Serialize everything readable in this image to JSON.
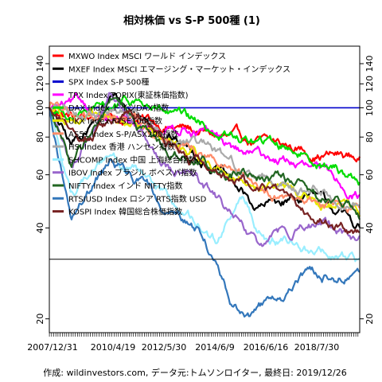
{
  "chart_data": {
    "type": "line",
    "title": "相対株価 vs S-P 500種 (1)",
    "footer": "作成: wildinvestors.com, データ元:トムソンロイター, 最終日: 2019/12/26",
    "y_scale": "log",
    "ylim": [
      18,
      160
    ],
    "xlim": [
      "2007-12-31",
      "2019-12-26"
    ],
    "y_ticks": [
      20,
      40,
      60,
      80,
      100,
      120,
      140
    ],
    "x_tick_labels": [
      "2007/12/31",
      "2010/4/19",
      "2012/5/30",
      "2014/6/9",
      "2016/6/16",
      "2018/7/30"
    ],
    "reference_lines": [
      100,
      31.5
    ],
    "grid": false,
    "legend_position": "top-left",
    "series": [
      {
        "name": "MXWO Index MSCI ワールド インデックス",
        "color": "#ff0000",
        "x": [
          "2007-12-31",
          "2009-03-01",
          "2011-01-01",
          "2013-01-01",
          "2015-01-01",
          "2017-01-01",
          "2019-12-26"
        ],
        "values": [
          100,
          92,
          94,
          86,
          78,
          74,
          68
        ]
      },
      {
        "name": "MXEF Index MSCI エマージング・マーケット・インデックス",
        "color": "#000000",
        "x": [
          "2007-12-31",
          "2008-11-01",
          "2010-06-01",
          "2012-06-01",
          "2014-06-01",
          "2016-01-01",
          "2018-01-01",
          "2019-12-26"
        ],
        "values": [
          100,
          74,
          108,
          84,
          64,
          46,
          52,
          40
        ]
      },
      {
        "name": "SPX Index S-P 500種",
        "color": "#0000cc",
        "x": [
          "2007-12-31",
          "2019-12-26"
        ],
        "values": [
          100,
          100
        ]
      },
      {
        "name": "TPX Index TOPIX(東証株価指数)",
        "color": "#ff00ff",
        "x": [
          "2007-12-31",
          "2009-06-01",
          "2011-06-01",
          "2013-06-01",
          "2015-06-01",
          "2017-06-01",
          "2019-12-26"
        ],
        "values": [
          100,
          100,
          82,
          88,
          70,
          66,
          52
        ]
      },
      {
        "name": "DAX Index ドイツDAX指数",
        "color": "#00dd00",
        "x": [
          "2007-12-31",
          "2009-06-01",
          "2011-06-01",
          "2013-06-01",
          "2015-06-01",
          "2017-06-01",
          "2019-12-26"
        ],
        "values": [
          100,
          94,
          104,
          88,
          78,
          74,
          58
        ]
      },
      {
        "name": "UKX Index FTSE100指数",
        "color": "#e8e800",
        "x": [
          "2007-12-31",
          "2009-06-01",
          "2011-06-01",
          "2013-06-01",
          "2015-06-01",
          "2017-06-01",
          "2019-12-26"
        ],
        "values": [
          100,
          92,
          88,
          70,
          58,
          52,
          44
        ]
      },
      {
        "name": "AS51 Index S-P/ASX200指数",
        "color": "#ff8c69",
        "x": [
          "2007-12-31",
          "2009-06-01",
          "2011-06-01",
          "2013-06-01",
          "2015-06-01",
          "2017-06-01",
          "2019-12-26"
        ],
        "values": [
          100,
          96,
          92,
          74,
          58,
          50,
          46
        ]
      },
      {
        "name": "HSI Index 香港 ハンセン指数",
        "color": "#aaaaaa",
        "x": [
          "2007-12-31",
          "2009-06-01",
          "2011-06-01",
          "2013-06-01",
          "2015-06-01",
          "2017-06-01",
          "2019-12-26"
        ],
        "values": [
          100,
          98,
          92,
          76,
          62,
          56,
          48
        ]
      },
      {
        "name": "SHCOMP Index 中国 上海総合指数",
        "color": "#99eeff",
        "x": [
          "2007-12-31",
          "2008-11-01",
          "2010-06-01",
          "2012-06-01",
          "2014-06-01",
          "2015-06-01",
          "2016-06-01",
          "2018-01-01",
          "2019-12-26"
        ],
        "values": [
          100,
          52,
          72,
          50,
          36,
          50,
          36,
          34,
          30
        ]
      },
      {
        "name": "IBOV Index ブラジル ボベスパ指数",
        "color": "#9966cc",
        "x": [
          "2007-12-31",
          "2008-11-01",
          "2010-06-01",
          "2012-06-01",
          "2014-06-01",
          "2016-01-01",
          "2018-01-01",
          "2019-12-26"
        ],
        "values": [
          100,
          66,
          110,
          68,
          50,
          34,
          42,
          36
        ]
      },
      {
        "name": "NIFTY Index インド NIFTY指数",
        "color": "#226622",
        "x": [
          "2007-12-31",
          "2008-11-01",
          "2010-06-01",
          "2012-06-01",
          "2014-06-01",
          "2016-06-01",
          "2018-06-01",
          "2019-12-26"
        ],
        "values": [
          100,
          64,
          104,
          72,
          64,
          58,
          52,
          44
        ]
      },
      {
        "name": "RTSIUSD Index ロシア RTS指数 USD",
        "color": "#3377bb",
        "x": [
          "2007-12-31",
          "2008-11-01",
          "2010-06-01",
          "2012-06-01",
          "2014-01-01",
          "2015-01-01",
          "2016-01-01",
          "2018-01-01",
          "2019-12-26"
        ],
        "values": [
          100,
          42,
          68,
          48,
          38,
          22,
          21,
          27,
          28
        ]
      },
      {
        "name": "KOSPI Index 韓国総合株価指数",
        "color": "#772222",
        "x": [
          "2007-12-31",
          "2009-03-01",
          "2011-03-01",
          "2013-06-01",
          "2015-06-01",
          "2017-06-01",
          "2019-12-26"
        ],
        "values": [
          100,
          82,
          96,
          66,
          58,
          50,
          38
        ]
      }
    ]
  }
}
